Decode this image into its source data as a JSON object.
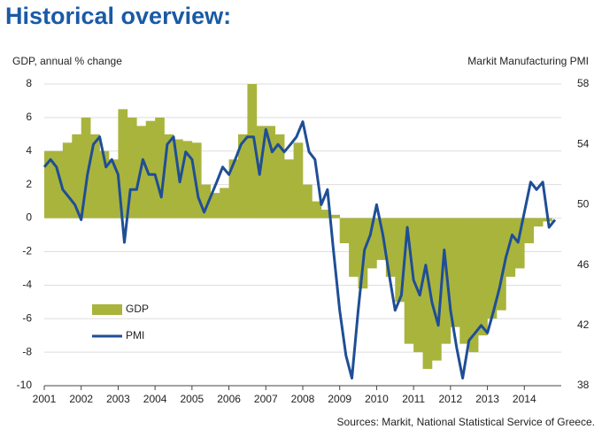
{
  "chart_data": {
    "type": "bar-line",
    "title": "Historical overview:",
    "y_label": "GDP, annual % change",
    "y2_label": "Markit Manufacturing PMI",
    "source": "Sources: Markit, National Statistical Service of Greece.",
    "xlim": [
      2001,
      2015
    ],
    "xticks": [
      2001,
      2002,
      2003,
      2004,
      2005,
      2006,
      2007,
      2008,
      2009,
      2010,
      2011,
      2012,
      2013,
      2014
    ],
    "ylim": [
      -10,
      8
    ],
    "yticks": [
      -10,
      -8,
      -6,
      -4,
      -2,
      0,
      2,
      4,
      6,
      8
    ],
    "y2lim": [
      38,
      58
    ],
    "y2ticks": [
      38,
      42,
      46,
      50,
      54,
      58
    ],
    "grid": true,
    "series": [
      {
        "name": "GDP",
        "color": "#a9b43c",
        "kind": "bar",
        "x": [
          2001,
          2001.25,
          2001.5,
          2001.75,
          2002,
          2002.25,
          2002.5,
          2002.75,
          2003,
          2003.25,
          2003.5,
          2003.75,
          2004,
          2004.25,
          2004.5,
          2004.75,
          2005,
          2005.25,
          2005.5,
          2005.75,
          2006,
          2006.25,
          2006.5,
          2006.75,
          2007,
          2007.25,
          2007.5,
          2007.75,
          2008,
          2008.25,
          2008.5,
          2008.75,
          2009,
          2009.25,
          2009.5,
          2009.75,
          2010,
          2010.25,
          2010.5,
          2010.75,
          2011,
          2011.25,
          2011.5,
          2011.75,
          2012,
          2012.25,
          2012.5,
          2012.75,
          2013,
          2013.25,
          2013.5,
          2013.75,
          2014,
          2014.25,
          2014.5
        ],
        "values": [
          4,
          4,
          4.5,
          5,
          6,
          5,
          4,
          3.5,
          6.5,
          6,
          5.5,
          5.8,
          6,
          5,
          4.7,
          4.6,
          4.5,
          2,
          1.5,
          1.8,
          3.5,
          5,
          8,
          5.5,
          5.5,
          5,
          3.5,
          4.5,
          2,
          1,
          0.5,
          0.2,
          -1.5,
          -3.5,
          -4.2,
          -3,
          -2.5,
          -3.5,
          -5,
          -7.5,
          -8,
          -9,
          -8.5,
          -7.5,
          -6.5,
          -7.5,
          -8,
          -7,
          -6,
          -5.5,
          -3.5,
          -3,
          -1.5,
          -0.5,
          -0.2
        ]
      },
      {
        "name": "PMI",
        "color": "#1f4e96",
        "kind": "line",
        "axis": "y2",
        "x": [
          2001,
          2001.17,
          2001.33,
          2001.5,
          2001.67,
          2001.83,
          2002,
          2002.17,
          2002.33,
          2002.5,
          2002.67,
          2002.83,
          2003,
          2003.17,
          2003.33,
          2003.5,
          2003.67,
          2003.83,
          2004,
          2004.17,
          2004.33,
          2004.5,
          2004.67,
          2004.83,
          2005,
          2005.17,
          2005.33,
          2005.5,
          2005.67,
          2005.83,
          2006,
          2006.17,
          2006.33,
          2006.5,
          2006.67,
          2006.83,
          2007,
          2007.17,
          2007.33,
          2007.5,
          2007.67,
          2007.83,
          2008,
          2008.17,
          2008.33,
          2008.5,
          2008.67,
          2008.83,
          2009,
          2009.17,
          2009.33,
          2009.5,
          2009.67,
          2009.83,
          2010,
          2010.17,
          2010.33,
          2010.5,
          2010.67,
          2010.83,
          2011,
          2011.17,
          2011.33,
          2011.5,
          2011.67,
          2011.83,
          2012,
          2012.17,
          2012.33,
          2012.5,
          2012.67,
          2012.83,
          2013,
          2013.17,
          2013.33,
          2013.5,
          2013.67,
          2013.83,
          2014,
          2014.17,
          2014.33,
          2014.5,
          2014.67,
          2014.83
        ],
        "values": [
          52.5,
          53,
          52.5,
          51,
          50.5,
          50,
          49,
          52,
          54,
          54.5,
          52.5,
          53,
          52,
          47.5,
          51,
          51,
          53,
          52,
          52,
          50.5,
          54,
          54.5,
          51.5,
          53.5,
          53,
          50.5,
          49.5,
          50.5,
          51.5,
          52.5,
          52,
          53,
          54,
          54.5,
          54.5,
          52,
          55,
          53.5,
          54,
          53.5,
          54,
          54.5,
          55.5,
          53.5,
          53,
          50,
          51,
          47,
          43,
          40,
          38.5,
          43,
          47,
          48,
          50,
          48,
          45.5,
          43,
          44,
          48.5,
          45,
          44,
          46,
          43.5,
          42,
          47,
          43,
          40.5,
          38.5,
          41,
          41.5,
          42,
          41.5,
          43,
          44.5,
          46.5,
          48,
          47.5,
          49.5,
          51.5,
          51,
          51.5,
          48.5,
          49
        ]
      }
    ]
  }
}
